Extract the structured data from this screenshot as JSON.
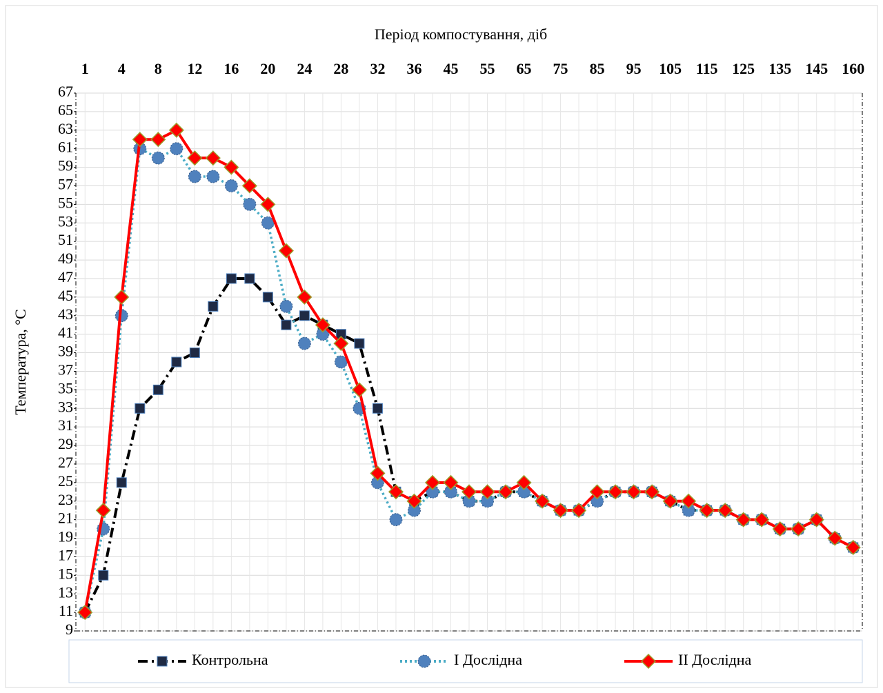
{
  "chart_data": {
    "type": "line",
    "title": "Період компостування, діб",
    "y_label": "Температура, °С",
    "x_axis_position": "top",
    "categories": [
      "1",
      null,
      "4",
      null,
      "8",
      null,
      "12",
      null,
      "16",
      null,
      "20",
      null,
      "24",
      null,
      "28",
      null,
      "32",
      null,
      "36",
      null,
      "45",
      null,
      "55",
      null,
      "65",
      null,
      "75",
      null,
      "85",
      null,
      "95",
      null,
      "105",
      null,
      "115",
      null,
      "125",
      null,
      "135",
      null,
      "145",
      null,
      "160"
    ],
    "ylim": [
      9,
      67
    ],
    "yticks": [
      9,
      11,
      13,
      15,
      17,
      19,
      21,
      23,
      25,
      27,
      29,
      31,
      33,
      35,
      37,
      39,
      41,
      43,
      45,
      47,
      49,
      51,
      53,
      55,
      57,
      59,
      61,
      63,
      65,
      67
    ],
    "grid": true,
    "legend": "bottom",
    "series": [
      {
        "name": "Контрольна",
        "color": "#000000",
        "marker": "square",
        "marker_color": "#1f2a44",
        "dash": "dashdot",
        "values": [
          11,
          15,
          25,
          33,
          35,
          38,
          39,
          44,
          47,
          47,
          45,
          42,
          43,
          42,
          41,
          40,
          33,
          24,
          23,
          24,
          24,
          23,
          23,
          24,
          24,
          23,
          22,
          22,
          23,
          24,
          24,
          24,
          23,
          22,
          22,
          22,
          21,
          21,
          20,
          20,
          21,
          19,
          18
        ]
      },
      {
        "name": "І Дослідна",
        "color": "#4bacc6",
        "marker": "circle",
        "marker_color": "#4f81bd",
        "dash": "dot",
        "values": [
          11,
          20,
          43,
          61,
          60,
          61,
          58,
          58,
          57,
          55,
          53,
          44,
          40,
          41,
          38,
          33,
          25,
          21,
          22,
          24,
          24,
          23,
          23,
          24,
          24,
          23,
          22,
          22,
          23,
          24,
          24,
          24,
          23,
          22,
          22,
          22,
          21,
          21,
          20,
          20,
          21,
          19,
          18
        ]
      },
      {
        "name": "ІІ Дослідна",
        "color": "#ff0000",
        "marker": "diamond",
        "marker_color": "#ff0000",
        "dash": "solid",
        "values": [
          11,
          22,
          45,
          62,
          62,
          63,
          60,
          60,
          59,
          57,
          55,
          50,
          45,
          42,
          40,
          35,
          26,
          24,
          23,
          25,
          25,
          24,
          24,
          24,
          25,
          23,
          22,
          22,
          24,
          24,
          24,
          24,
          23,
          23,
          22,
          22,
          21,
          21,
          20,
          20,
          21,
          19,
          18
        ]
      }
    ]
  }
}
